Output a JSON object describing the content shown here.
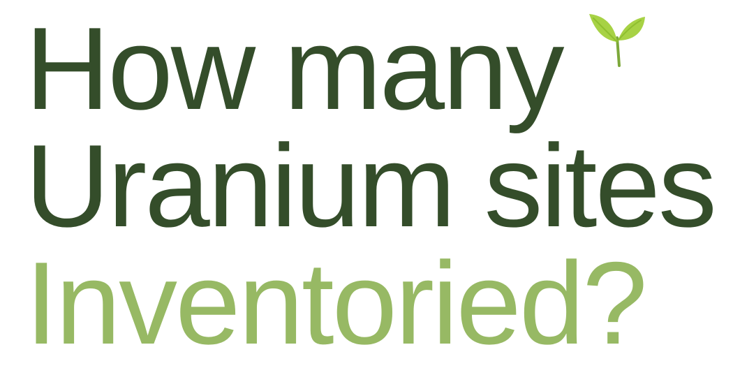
{
  "headline": {
    "line1": "How many",
    "line2": "Uranium sites",
    "line3": "Inventoried?"
  },
  "colors": {
    "dark_green": "#344d2a",
    "light_green": "#97b964",
    "leaf_green": "#a7d245",
    "stem_green": "#7ca83a"
  },
  "icon": "sprout-icon"
}
